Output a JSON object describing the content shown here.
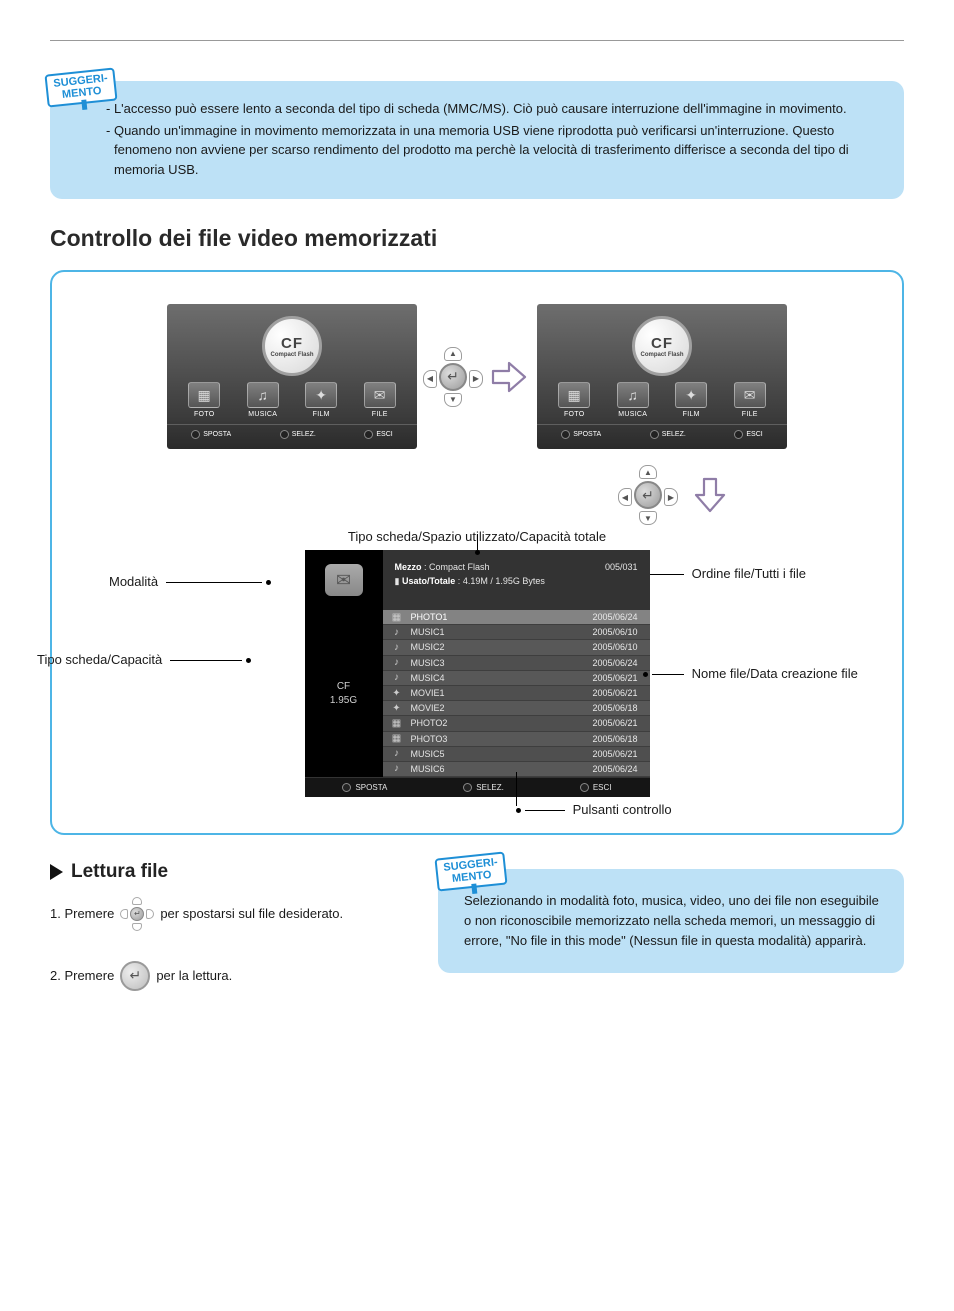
{
  "colors": {
    "tip_bg": "#bde1f6",
    "tip_border": "#1e8fd6",
    "figure_border": "#4db5e6",
    "panel_bg": "#191919",
    "panel_row_a": "#585858",
    "panel_row_b": "#4f4f4f",
    "arrow": "#8f7da7"
  },
  "tip_tag": {
    "line1": "SUGGERI-",
    "line2": "MENTO"
  },
  "tip1": {
    "items": [
      "L'accesso può essere lento a seconda del tipo di scheda (MMC/MS). Ciò può causare interruzione dell'immagine in movimento.",
      "Quando un'immagine in movimento memorizzata in una memoria USB viene riprodotta può verificarsi un'interruzione. Questo fenomeno non avviene per scarso rendimento del prodotto ma perchè la velocità di trasferimento differisce a seconda del tipo di memoria USB."
    ]
  },
  "section_title": "Controllo dei file video memorizzati",
  "cf_label": {
    "abbr": "CF",
    "full": "Compact Flash"
  },
  "media_menu": {
    "items": [
      {
        "label": "FOTO",
        "glyph": "▦"
      },
      {
        "label": "MUSICA",
        "glyph": "♫"
      },
      {
        "label": "FILM",
        "glyph": "✦"
      },
      {
        "label": "FILE",
        "glyph": "✉"
      }
    ],
    "bottom": {
      "move": "SPOSTA",
      "select": "SELEZ.",
      "exit": "ESCI"
    }
  },
  "caption_top": "Tipo scheda/Spazio utilizzato/Capacità totale",
  "callouts": {
    "modalita": "Modalità",
    "scheda_cap": "Tipo scheda/Capacità",
    "ordine": "Ordine file/Tutti i file",
    "nome_data": "Nome file/Data creazione file",
    "pulsanti": "Pulsanti controllo"
  },
  "file_panel": {
    "meta": {
      "mezzo_label": "Mezzo",
      "mezzo_value": "Compact Flash",
      "usato_label": "Usato/Totale",
      "usato_value": "4.19M / 1.95G Bytes",
      "order": "005/031"
    },
    "left": {
      "type": "CF",
      "cap": "1.95G"
    },
    "rows": [
      {
        "icon": "▦",
        "name": "PHOTO1",
        "date": "2005/06/24",
        "sel": true
      },
      {
        "icon": "♪",
        "name": "MUSIC1",
        "date": "2005/06/10"
      },
      {
        "icon": "♪",
        "name": "MUSIC2",
        "date": "2005/06/10"
      },
      {
        "icon": "♪",
        "name": "MUSIC3",
        "date": "2005/06/24"
      },
      {
        "icon": "♪",
        "name": "MUSIC4",
        "date": "2005/06/21"
      },
      {
        "icon": "✦",
        "name": "MOVIE1",
        "date": "2005/06/21"
      },
      {
        "icon": "✦",
        "name": "MOVIE2",
        "date": "2005/06/18"
      },
      {
        "icon": "▦",
        "name": "PHOTO2",
        "date": "2005/06/21"
      },
      {
        "icon": "▦",
        "name": "PHOTO3",
        "date": "2005/06/18"
      },
      {
        "icon": "♪",
        "name": "MUSIC5",
        "date": "2005/06/21"
      },
      {
        "icon": "♪",
        "name": "MUSIC6",
        "date": "2005/06/24"
      }
    ],
    "bottom": {
      "move": "SPOSTA",
      "select": "SELEZ.",
      "exit": "ESCI"
    }
  },
  "lettura": {
    "heading": "Lettura file",
    "step1_a": "1. Premere",
    "step1_b": "per spostarsi sul file desiderato.",
    "step2_a": "2. Premere",
    "step2_b": "per la lettura."
  },
  "tip2": {
    "body": "Selezionando in modalità foto, musica, video, uno dei file non eseguibile o non riconoscibile memorizzato nella scheda memori, un messaggio di errore, \"No file in this mode\" (Nessun file in questa modalità) apparirà."
  }
}
